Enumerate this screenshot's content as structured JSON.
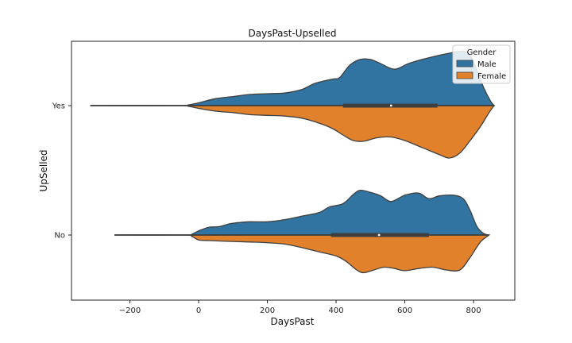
{
  "chart_data": {
    "type": "violin",
    "title": "DaysPast-Upselled",
    "xlabel": "DaysPast",
    "ylabel": "UpSelled",
    "xlim": [
      -370,
      920
    ],
    "xticks": [
      -200,
      0,
      200,
      400,
      600,
      800
    ],
    "categories": [
      "Yes",
      "No"
    ],
    "split_by": "Gender",
    "legend": {
      "title": "Gender",
      "position": "top-right",
      "entries": [
        {
          "label": "Male",
          "color": "#3274a1"
        },
        {
          "label": "Female",
          "color": "#e1812c"
        }
      ]
    },
    "colors": {
      "Male": "#3274a1",
      "Female": "#e1812c",
      "outline": "#3f3f3f"
    },
    "violins": [
      {
        "category": "Yes",
        "whisker": [
          -315,
          860
        ],
        "box": [
          420,
          695
        ],
        "median": 560,
        "male_density": [
          [
            -315,
            0.0
          ],
          [
            -60,
            0.0
          ],
          [
            -30,
            0.01
          ],
          [
            0,
            0.04
          ],
          [
            50,
            0.1
          ],
          [
            100,
            0.13
          ],
          [
            150,
            0.16
          ],
          [
            200,
            0.17
          ],
          [
            250,
            0.18
          ],
          [
            300,
            0.23
          ],
          [
            340,
            0.32
          ],
          [
            390,
            0.38
          ],
          [
            410,
            0.4
          ],
          [
            440,
            0.58
          ],
          [
            470,
            0.66
          ],
          [
            500,
            0.66
          ],
          [
            530,
            0.6
          ],
          [
            570,
            0.52
          ],
          [
            610,
            0.6
          ],
          [
            650,
            0.66
          ],
          [
            700,
            0.72
          ],
          [
            740,
            0.76
          ],
          [
            770,
            0.78
          ],
          [
            790,
            0.72
          ],
          [
            810,
            0.5
          ],
          [
            830,
            0.25
          ],
          [
            850,
            0.06
          ],
          [
            860,
            0.0
          ]
        ],
        "female_density": [
          [
            -315,
            0.0
          ],
          [
            -60,
            0.0
          ],
          [
            -30,
            0.01
          ],
          [
            0,
            0.04
          ],
          [
            50,
            0.08
          ],
          [
            100,
            0.1
          ],
          [
            150,
            0.13
          ],
          [
            200,
            0.14
          ],
          [
            250,
            0.15
          ],
          [
            300,
            0.18
          ],
          [
            350,
            0.25
          ],
          [
            390,
            0.33
          ],
          [
            420,
            0.42
          ],
          [
            450,
            0.5
          ],
          [
            480,
            0.51
          ],
          [
            520,
            0.46
          ],
          [
            560,
            0.45
          ],
          [
            600,
            0.5
          ],
          [
            650,
            0.6
          ],
          [
            700,
            0.7
          ],
          [
            730,
            0.75
          ],
          [
            760,
            0.68
          ],
          [
            790,
            0.5
          ],
          [
            820,
            0.3
          ],
          [
            845,
            0.1
          ],
          [
            860,
            0.0
          ]
        ]
      },
      {
        "category": "No",
        "whisker": [
          -245,
          845
        ],
        "box": [
          385,
          670
        ],
        "median": 525,
        "male_density": [
          [
            -245,
            0.0
          ],
          [
            -40,
            0.0
          ],
          [
            -20,
            0.01
          ],
          [
            0,
            0.06
          ],
          [
            30,
            0.11
          ],
          [
            60,
            0.12
          ],
          [
            90,
            0.16
          ],
          [
            120,
            0.18
          ],
          [
            150,
            0.19
          ],
          [
            200,
            0.19
          ],
          [
            250,
            0.22
          ],
          [
            300,
            0.27
          ],
          [
            350,
            0.32
          ],
          [
            380,
            0.4
          ],
          [
            420,
            0.45
          ],
          [
            450,
            0.58
          ],
          [
            470,
            0.64
          ],
          [
            500,
            0.61
          ],
          [
            530,
            0.56
          ],
          [
            560,
            0.48
          ],
          [
            600,
            0.57
          ],
          [
            640,
            0.6
          ],
          [
            670,
            0.52
          ],
          [
            700,
            0.56
          ],
          [
            740,
            0.57
          ],
          [
            770,
            0.52
          ],
          [
            790,
            0.35
          ],
          [
            810,
            0.12
          ],
          [
            830,
            0.02
          ],
          [
            845,
            0.0
          ]
        ],
        "female_density": [
          [
            -245,
            0.0
          ],
          [
            -40,
            0.0
          ],
          [
            -20,
            0.02
          ],
          [
            0,
            0.07
          ],
          [
            30,
            0.08
          ],
          [
            80,
            0.09
          ],
          [
            150,
            0.1
          ],
          [
            200,
            0.11
          ],
          [
            250,
            0.13
          ],
          [
            300,
            0.18
          ],
          [
            350,
            0.24
          ],
          [
            400,
            0.3
          ],
          [
            430,
            0.38
          ],
          [
            460,
            0.5
          ],
          [
            480,
            0.54
          ],
          [
            510,
            0.5
          ],
          [
            540,
            0.46
          ],
          [
            570,
            0.48
          ],
          [
            600,
            0.51
          ],
          [
            640,
            0.48
          ],
          [
            680,
            0.46
          ],
          [
            720,
            0.5
          ],
          [
            760,
            0.5
          ],
          [
            790,
            0.32
          ],
          [
            820,
            0.1
          ],
          [
            845,
            0.0
          ]
        ]
      }
    ]
  }
}
